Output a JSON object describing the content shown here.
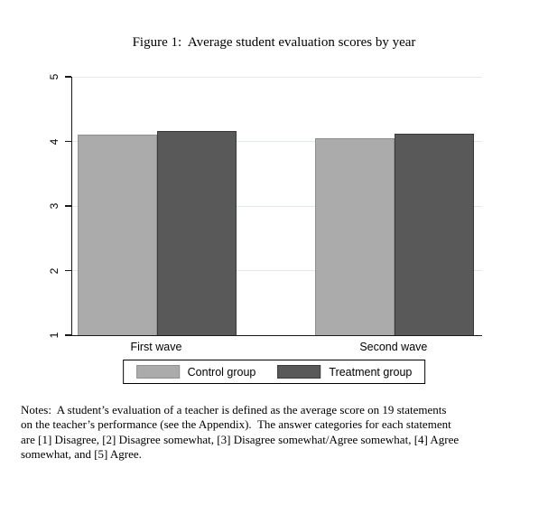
{
  "figure": {
    "title": "Figure 1:  Average student evaluation scores by year"
  },
  "chart_data": {
    "type": "bar",
    "title": "Figure 1: Average student evaluation scores by year",
    "categories": [
      "First wave",
      "Second wave"
    ],
    "series": [
      {
        "name": "Control group",
        "values": [
          4.11,
          4.05
        ],
        "color": "#ababab",
        "border_color": "#909090"
      },
      {
        "name": "Treatment group",
        "values": [
          4.16,
          4.12
        ],
        "color": "#595959",
        "border_color": "#3a3a3a"
      }
    ],
    "xlabel": "",
    "ylabel": "",
    "ylim": [
      1,
      5
    ],
    "yticks": [
      1,
      2,
      3,
      4,
      5
    ],
    "baseline": 1,
    "grid": true,
    "gridline_color": "#e0eaea",
    "axis_color": "#1a1a1a",
    "legend_position": "bottom"
  },
  "notes": {
    "text": "Notes: A student’s evaluation of a teacher is defined as the average score on 19 statements on the teacher’s performance (see the Appendix). The answer categories for each statement are [1] Disagree, [2] Disagree somewhat, [3] Disagree somewhat/Agree somewhat, [4] Agree somewhat, and [5] Agree.",
    "lines": [
      "Notes:  A student’s evaluation of a teacher is defined as the average score on 19 statements",
      "on the teacher’s performance (see the Appendix).  The answer categories for each statement",
      "are [1] Disagree, [2] Disagree somewhat, [3] Disagree somewhat/Agree somewhat, [4] Agree",
      "somewhat, and [5] Agree."
    ]
  }
}
